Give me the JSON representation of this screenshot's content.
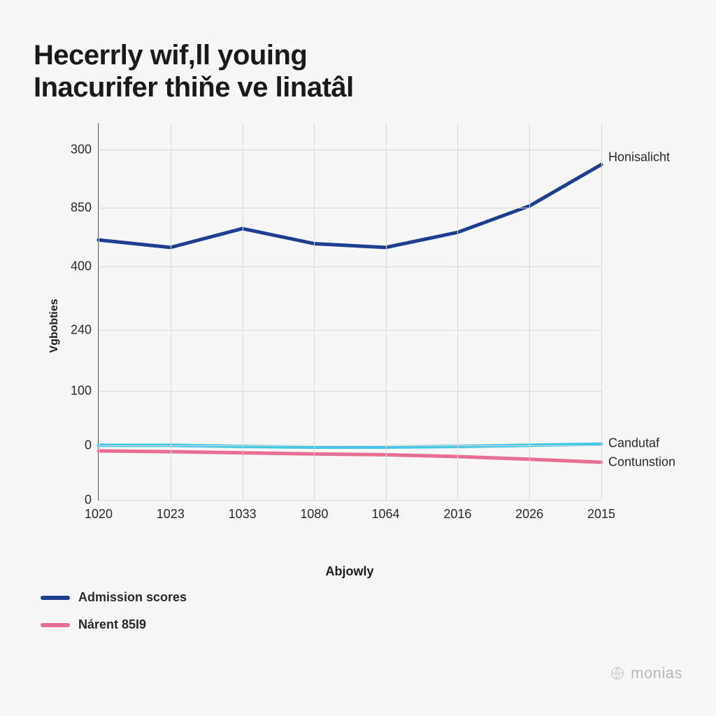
{
  "title_line1": "Hecerrly wif,ll youing",
  "title_line2": "Inacurifer thiňe ve linatâl",
  "chart": {
    "type": "line",
    "background_color": "#f7f7f8",
    "grid_color": "#d9d9d9",
    "axis_color": "#6a6a6a",
    "text_color": "#2a2a2a",
    "ylabel": "Vgbobties",
    "xlabel": "Abjowly",
    "title_fontsize": 40,
    "label_fontsize": 18,
    "tick_fontsize": 18,
    "x_categories": [
      "1020",
      "1023",
      "1033",
      "1080",
      "1064",
      "2016",
      "2026",
      "2015"
    ],
    "y_ticks": [
      "0",
      "0",
      "100",
      "240",
      "400",
      "850",
      "300"
    ],
    "y_tick_positions_pct": [
      100,
      85.5,
      71,
      55,
      38,
      22.5,
      7
    ],
    "x_tick_positions_pct": [
      0,
      14.3,
      28.6,
      42.9,
      57.1,
      71.4,
      85.7,
      100
    ],
    "line_width": 5,
    "series": [
      {
        "name": "Honisalicht",
        "color": "#1e3f8f",
        "label_right": "Honisalicht",
        "label_right_y_pct": 9,
        "y_pct": [
          31,
          33,
          28,
          32,
          33,
          29,
          22,
          11
        ]
      },
      {
        "name": "Candutaf",
        "color": "#47c7e6",
        "label_right": "Candutaf",
        "label_right_y_pct": 85,
        "y_pct": [
          85.5,
          85.5,
          85.8,
          86,
          86,
          85.8,
          85.5,
          85.2
        ]
      },
      {
        "name": "Contunstion",
        "color": "#e86f93",
        "label_right": "Contunstion",
        "label_right_y_pct": 90,
        "y_pct": [
          87,
          87.2,
          87.5,
          87.8,
          88,
          88.5,
          89.2,
          90
        ]
      }
    ]
  },
  "legend": {
    "items": [
      {
        "color": "#1e3f8f",
        "label": "Admission scores"
      },
      {
        "color": "#e86f93",
        "label": "Nárent 85I9"
      }
    ],
    "swatch_width": 42,
    "swatch_height": 6
  },
  "watermark": {
    "text": "monias",
    "color": "#b8b8b8"
  }
}
